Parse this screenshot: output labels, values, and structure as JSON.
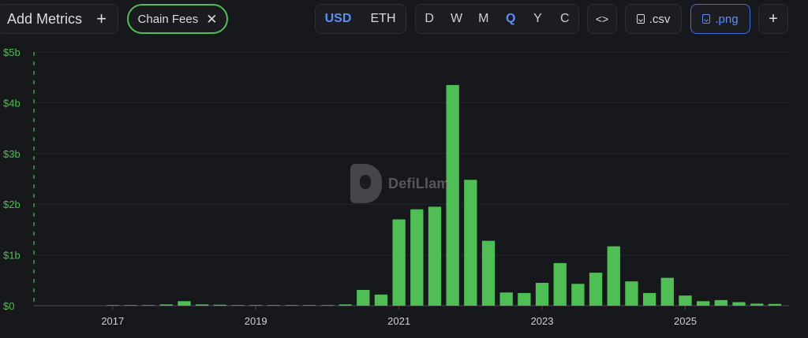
{
  "toolbar": {
    "add_metrics_label": "Add Metrics",
    "add_metrics_plus": "+",
    "chip_label": "Chain Fees",
    "chip_close": "✕",
    "currency_options": [
      "USD",
      "ETH"
    ],
    "currency_selected": "USD",
    "period_options": [
      "D",
      "W",
      "M",
      "Q",
      "Y",
      "C"
    ],
    "period_selected": "Q",
    "embed_label": "<>",
    "csv_label": ".csv",
    "png_label": ".png",
    "more_label": "+"
  },
  "watermark": {
    "text": "DefiLlam"
  },
  "colors": {
    "bar": "#4fbe55",
    "axis_text": "#4fbe55",
    "x_label": "#cfcfcf",
    "active": "#5b8ff0"
  },
  "chart_data": {
    "type": "bar",
    "title": "",
    "xlabel": "",
    "ylabel": "",
    "series": [
      {
        "name": "Chain Fees"
      }
    ],
    "ylim": [
      0,
      5000000000
    ],
    "y_ticks": [
      {
        "value": 0,
        "label": "$0"
      },
      {
        "value": 1000000000,
        "label": "$1b"
      },
      {
        "value": 2000000000,
        "label": "$2b"
      },
      {
        "value": 3000000000,
        "label": "$3b"
      },
      {
        "value": 4000000000,
        "label": "$4b"
      },
      {
        "value": 5000000000,
        "label": "$5b"
      }
    ],
    "x_range": [
      2015.9,
      2026.45
    ],
    "x_ticks": [
      {
        "value": 2017,
        "label": "2017"
      },
      {
        "value": 2019,
        "label": "2019"
      },
      {
        "value": 2021,
        "label": "2021"
      },
      {
        "value": 2023,
        "label": "2023"
      },
      {
        "value": 2025,
        "label": "2025"
      }
    ],
    "bars": [
      {
        "x": 2017.0,
        "value": 5000000
      },
      {
        "x": 2017.25,
        "value": 5000000
      },
      {
        "x": 2017.5,
        "value": 8000000
      },
      {
        "x": 2017.75,
        "value": 25000000
      },
      {
        "x": 2018.0,
        "value": 90000000
      },
      {
        "x": 2018.25,
        "value": 25000000
      },
      {
        "x": 2018.5,
        "value": 20000000
      },
      {
        "x": 2018.75,
        "value": 8000000
      },
      {
        "x": 2019.0,
        "value": 5000000
      },
      {
        "x": 2019.25,
        "value": 12000000
      },
      {
        "x": 2019.5,
        "value": 12000000
      },
      {
        "x": 2019.75,
        "value": 8000000
      },
      {
        "x": 2020.0,
        "value": 10000000
      },
      {
        "x": 2020.25,
        "value": 25000000
      },
      {
        "x": 2020.5,
        "value": 310000000
      },
      {
        "x": 2020.75,
        "value": 220000000
      },
      {
        "x": 2021.0,
        "value": 1700000000
      },
      {
        "x": 2021.25,
        "value": 1900000000
      },
      {
        "x": 2021.5,
        "value": 1950000000
      },
      {
        "x": 2021.75,
        "value": 4350000000
      },
      {
        "x": 2022.0,
        "value": 2480000000
      },
      {
        "x": 2022.25,
        "value": 1280000000
      },
      {
        "x": 2022.5,
        "value": 260000000
      },
      {
        "x": 2022.75,
        "value": 250000000
      },
      {
        "x": 2023.0,
        "value": 450000000
      },
      {
        "x": 2023.25,
        "value": 840000000
      },
      {
        "x": 2023.5,
        "value": 430000000
      },
      {
        "x": 2023.75,
        "value": 650000000
      },
      {
        "x": 2024.0,
        "value": 1170000000
      },
      {
        "x": 2024.25,
        "value": 480000000
      },
      {
        "x": 2024.5,
        "value": 250000000
      },
      {
        "x": 2024.75,
        "value": 550000000
      },
      {
        "x": 2025.0,
        "value": 200000000
      },
      {
        "x": 2025.25,
        "value": 90000000
      },
      {
        "x": 2025.5,
        "value": 110000000
      },
      {
        "x": 2025.75,
        "value": 70000000
      },
      {
        "x": 2026.0,
        "value": 40000000
      },
      {
        "x": 2026.25,
        "value": 35000000
      }
    ]
  }
}
